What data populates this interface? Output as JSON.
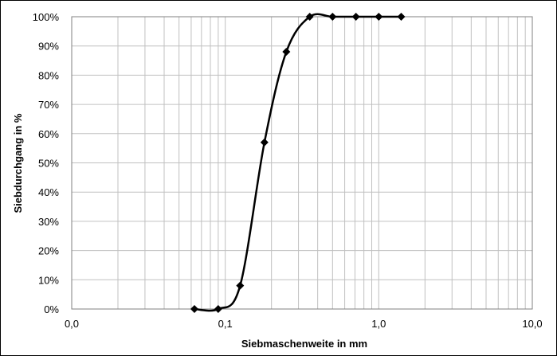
{
  "chart_data": {
    "type": "line",
    "title": "",
    "xlabel": "Siebmaschenweite in mm",
    "ylabel": "Siebdurchgang in %",
    "x_scale": "log",
    "xlim": [
      0.01,
      10
    ],
    "ylim": [
      0,
      100
    ],
    "x_ticks": [
      "0,0",
      "0,1",
      "1,0",
      "10,0"
    ],
    "y_ticks": [
      "0%",
      "10%",
      "20%",
      "30%",
      "40%",
      "50%",
      "60%",
      "70%",
      "80%",
      "90%",
      "100%"
    ],
    "grid": true,
    "series": [
      {
        "marker": "diamond",
        "smooth": true,
        "x": [
          0.063,
          0.09,
          0.125,
          0.18,
          0.25,
          0.355,
          0.5,
          0.71,
          1.0,
          1.4
        ],
        "y": [
          0,
          0,
          8,
          57,
          88,
          100,
          100,
          100,
          100,
          100
        ]
      }
    ]
  },
  "colors": {
    "line": "#000000",
    "grid": "#c0c0c0",
    "plot_border": "#808080"
  }
}
